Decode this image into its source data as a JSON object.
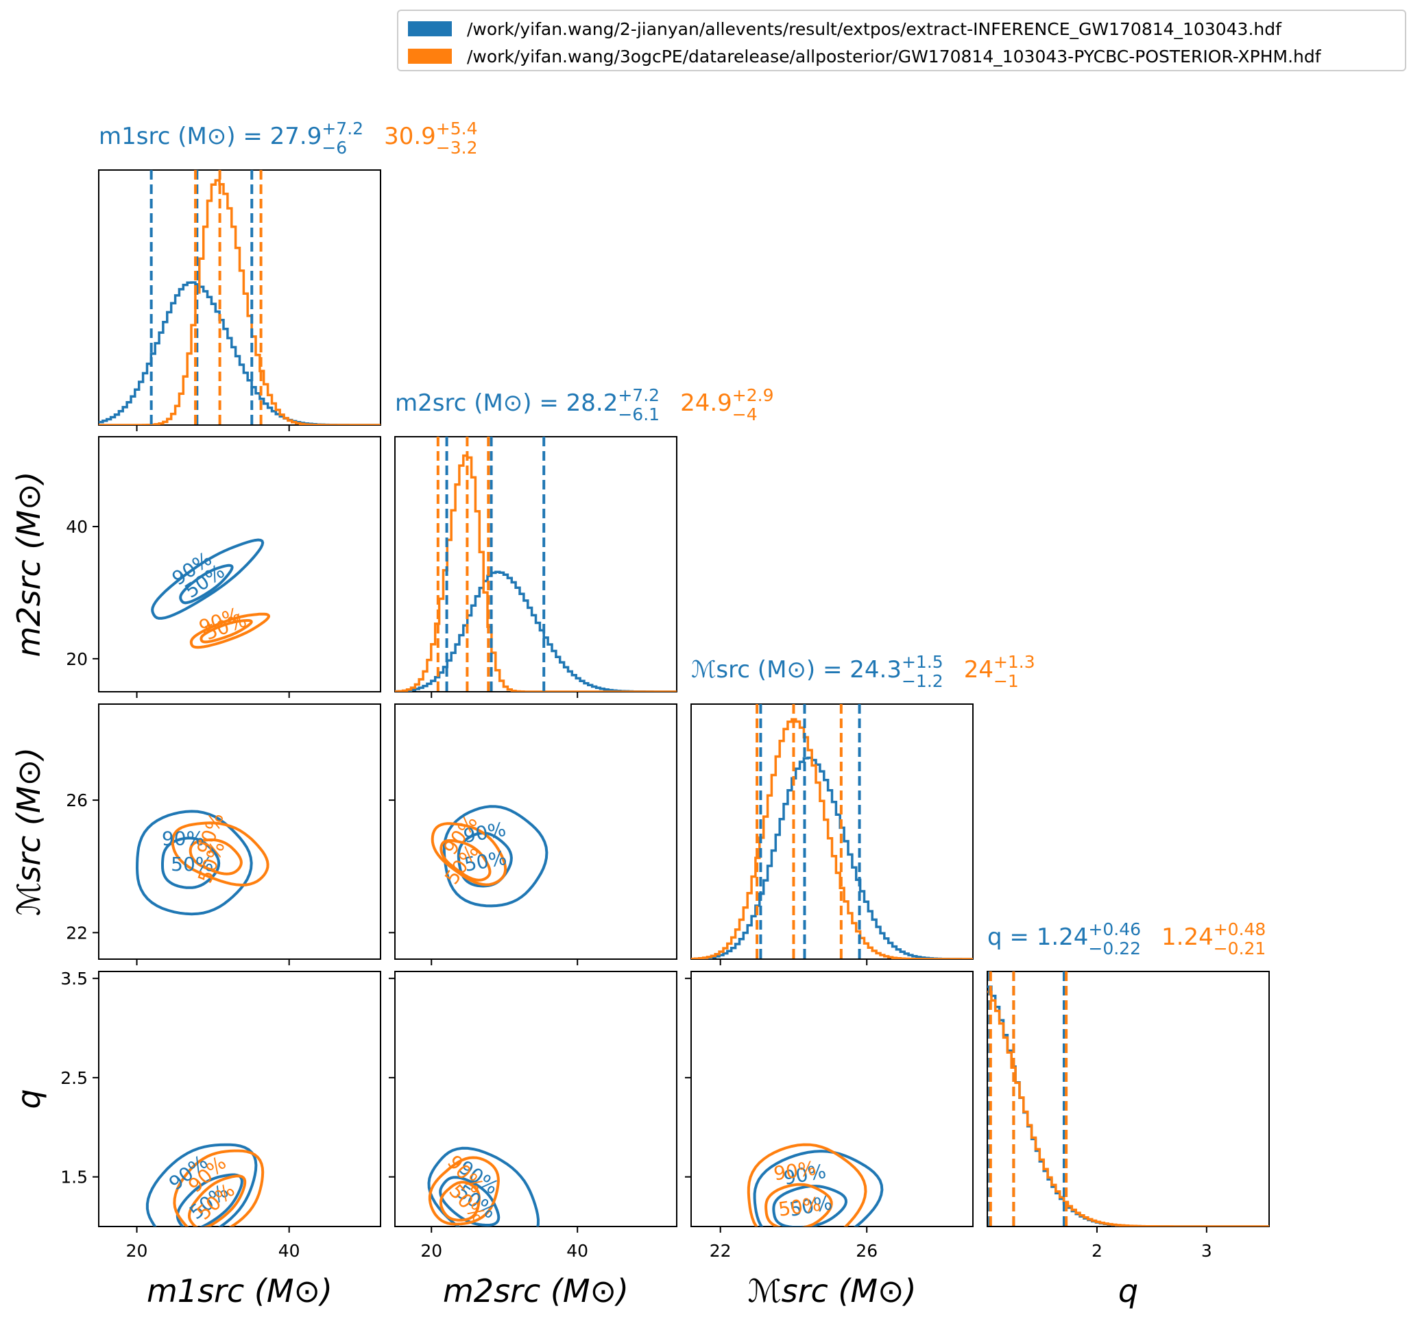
{
  "legend": {
    "series": [
      {
        "name": "/work/yifan.wang/2-jianyan/allevents/result/extpos/extract-INFERENCE_GW170814_103043.hdf",
        "color": "#1f77b4"
      },
      {
        "name": "/work/yifan.wang/3ogcPE/datarelease/allposterior/GW170814_103043-PYCBC-POSTERIOR-XPHM.hdf",
        "color": "#ff7f0e"
      }
    ]
  },
  "colors": {
    "blue": "#1f77b4",
    "orange": "#ff7f0e"
  },
  "chart_data": {
    "type": "corner",
    "parameters": [
      {
        "key": "m1",
        "axis_label": "m1src (M⊙)",
        "range": [
          15,
          52
        ],
        "ticks": [
          20,
          40
        ],
        "title": {
          "name": "m1src (M⊙) =",
          "blue": {
            "median": "27.9",
            "plus": "+7.2",
            "minus": "−6"
          },
          "orange": {
            "median": "30.9",
            "plus": "+5.4",
            "minus": "−3.2"
          }
        },
        "quantiles": {
          "blue": [
            21.9,
            27.9,
            35.1
          ],
          "orange": [
            27.7,
            30.9,
            36.3
          ]
        }
      },
      {
        "key": "m2",
        "axis_label": "m2src (M⊙)",
        "range": [
          15,
          53.6
        ],
        "ticks": [
          20,
          40
        ],
        "title": {
          "name": "m2src (M⊙) =",
          "blue": {
            "median": "28.2",
            "plus": "+7.2",
            "minus": "−6.1"
          },
          "orange": {
            "median": "24.9",
            "plus": "+2.9",
            "minus": "−4"
          }
        },
        "quantiles": {
          "blue": [
            22.1,
            28.2,
            35.4
          ],
          "orange": [
            20.9,
            24.9,
            27.8
          ]
        }
      },
      {
        "key": "mchirp",
        "axis_label": "ℳsrc (M⊙)",
        "range": [
          21.2,
          28.9
        ],
        "ticks": [
          22,
          26
        ],
        "title": {
          "name": "ℳsrc (M⊙) =",
          "blue": {
            "median": "24.3",
            "plus": "+1.5",
            "minus": "−1.2"
          },
          "orange": {
            "median": "24",
            "plus": "+1.3",
            "minus": "−1"
          }
        },
        "quantiles": {
          "blue": [
            23.1,
            24.3,
            25.8
          ],
          "orange": [
            23.0,
            24.0,
            25.3
          ]
        }
      },
      {
        "key": "q",
        "axis_label": "q",
        "range": [
          1.0,
          3.57
        ],
        "ticks": [
          2,
          3
        ],
        "title": {
          "name": "q =",
          "blue": {
            "median": "1.24",
            "plus": "+0.46",
            "minus": "−0.22"
          },
          "orange": {
            "median": "1.24",
            "plus": "+0.48",
            "minus": "−0.21"
          }
        },
        "quantiles": {
          "blue": [
            1.02,
            1.24,
            1.7
          ],
          "orange": [
            1.03,
            1.24,
            1.72
          ]
        }
      }
    ],
    "left_ticks": {
      "m2": [
        20,
        40
      ],
      "mchirp": [
        22,
        26
      ],
      "q": [
        1.5,
        2.5,
        3.5
      ]
    },
    "q_left_range": [
      1.0,
      3.57
    ],
    "contour_labels": [
      "50%",
      "90%"
    ]
  }
}
